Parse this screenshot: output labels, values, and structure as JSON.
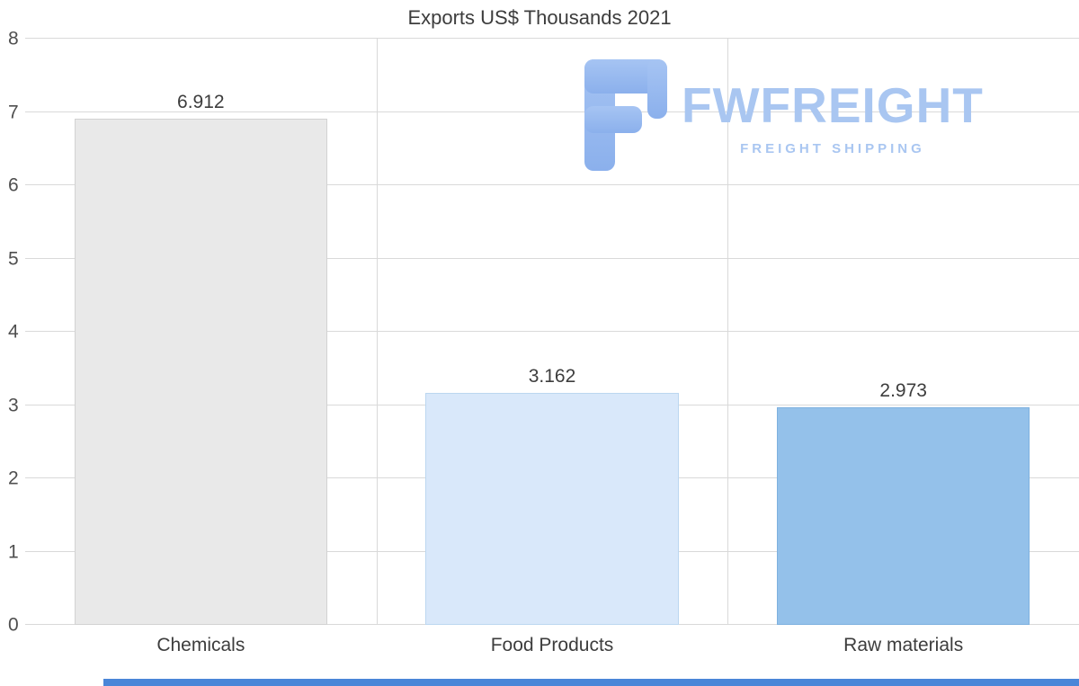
{
  "chart_data": {
    "type": "bar",
    "title": "Exports US$ Thousands 2021",
    "categories": [
      "Chemicals",
      "Food Products",
      "Raw materials"
    ],
    "values": [
      6.912,
      3.162,
      2.973
    ],
    "value_labels": [
      "6.912",
      "3.162",
      "2.973"
    ],
    "xlabel": "",
    "ylabel": "",
    "ylim": [
      0,
      8
    ],
    "yticks": [
      0,
      1,
      2,
      3,
      4,
      5,
      6,
      7,
      8
    ],
    "grid": true,
    "legend": false,
    "bar_colors": [
      "#e9e9e9",
      "#d9e8fa",
      "#94c1ea"
    ],
    "bar_border_colors": [
      "#d2d2d2",
      "#bcd7f0",
      "#7eb1df"
    ]
  },
  "watermark": {
    "brand": "FWFREIGHT",
    "tagline": "FREIGHT SHIPPING",
    "text_color": "#a9c6f1",
    "icon_color_top": "#a6c4f3",
    "icon_color_bottom": "#8bb0ec"
  },
  "page": {
    "bottom_strip_color": "#4a86d8"
  }
}
